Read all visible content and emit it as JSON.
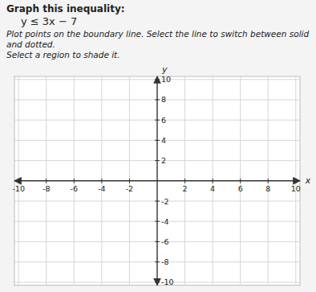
{
  "chart_data": {
    "type": "coordinate_plane",
    "title": "Graph this inequality:",
    "subtitle": "y ≤ 3x − 7",
    "annotations": [
      "Plot points on the boundary line. Select the line to switch between solid and dotted.",
      "Select a region to shade it."
    ],
    "xlabel": "x",
    "ylabel": "y",
    "xlim": [
      -10.3,
      10.3
    ],
    "ylim": [
      -10.3,
      10.3
    ],
    "xticks": [
      -10,
      -8,
      -6,
      -4,
      -2,
      2,
      4,
      6,
      8,
      10
    ],
    "yticks": [
      -10,
      -8,
      -6,
      -4,
      -2,
      2,
      4,
      6,
      8,
      10
    ],
    "grid": true
  }
}
